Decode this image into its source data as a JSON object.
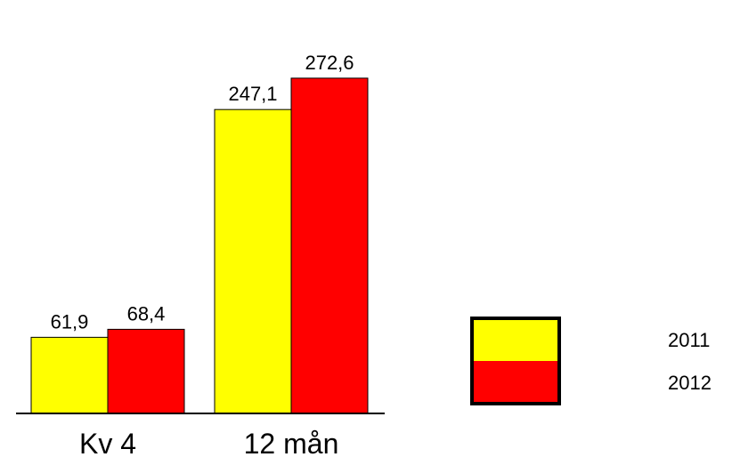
{
  "chart_data": {
    "type": "bar",
    "categories": [
      "Kv 4",
      "12 mån"
    ],
    "series": [
      {
        "name": "2011",
        "color": "#ffff00",
        "values": [
          61.9,
          247.1
        ],
        "labels": [
          "61,9",
          "247,1"
        ]
      },
      {
        "name": "2012",
        "color": "#ff0000",
        "values": [
          68.4,
          272.6
        ],
        "labels": [
          "68,4",
          "272,6"
        ]
      }
    ],
    "title": "",
    "xlabel": "",
    "ylabel": "",
    "ylim": [
      0,
      300
    ],
    "grid": false,
    "legend": "right",
    "value_axis_visible": false
  }
}
